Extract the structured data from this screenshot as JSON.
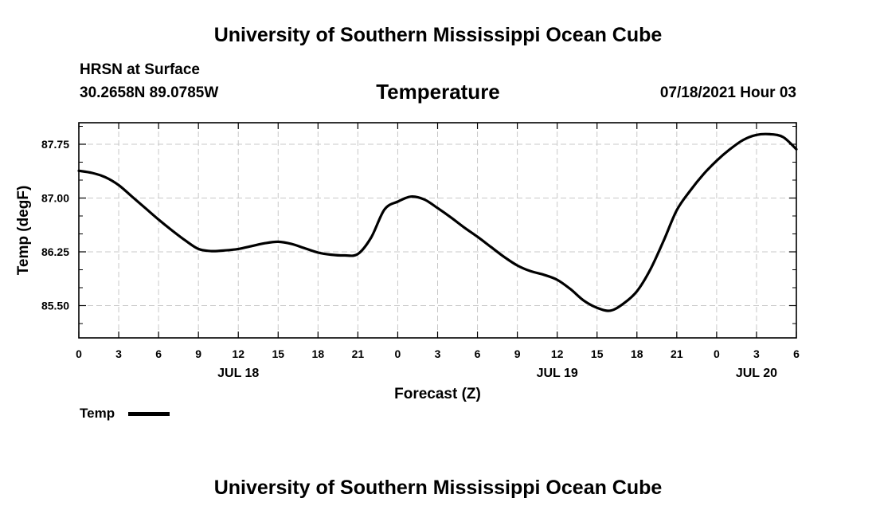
{
  "header": {
    "title": "University of Southern Mississippi Ocean Cube",
    "station": "HRSN at Surface",
    "coords": "30.2658N  89.0785W",
    "variable": "Temperature",
    "datetime": "07/18/2021 Hour 03"
  },
  "footer": {
    "title": "University of Southern Mississippi Ocean Cube"
  },
  "legend": {
    "label": "Temp"
  },
  "chart_data": {
    "type": "line",
    "title": "Temperature",
    "xlabel": "Forecast (Z)",
    "ylabel": "Temp (degF)",
    "xlim": [
      0,
      54
    ],
    "ylim": [
      85.05,
      88.05
    ],
    "grid": true,
    "legend_position": "bottom-left",
    "x_ticks": [
      0,
      3,
      6,
      9,
      12,
      15,
      18,
      21,
      24,
      27,
      30,
      33,
      36,
      39,
      42,
      45,
      48,
      51,
      54
    ],
    "x_tick_labels": [
      "0",
      "3",
      "6",
      "9",
      "12",
      "15",
      "18",
      "21",
      "0",
      "3",
      "6",
      "9",
      "12",
      "15",
      "18",
      "21",
      "0",
      "3",
      "6"
    ],
    "day_labels": [
      {
        "x": 12,
        "label": "JUL 18"
      },
      {
        "x": 36,
        "label": "JUL 19"
      },
      {
        "x": 51,
        "label": "JUL 20"
      }
    ],
    "y_ticks": [
      85.5,
      86.25,
      87.0,
      87.75
    ],
    "y_tick_labels": [
      "85.50",
      "86.25",
      "87.00",
      "87.75"
    ],
    "series": [
      {
        "name": "Temp",
        "color": "#000000",
        "x": [
          0,
          1,
          2,
          3,
          4,
          5,
          6,
          7,
          8,
          9,
          10,
          11,
          12,
          13,
          14,
          15,
          16,
          17,
          18,
          19,
          20,
          21,
          22,
          23,
          24,
          25,
          26,
          27,
          28,
          29,
          30,
          31,
          32,
          33,
          34,
          35,
          36,
          37,
          38,
          39,
          40,
          41,
          42,
          43,
          44,
          45,
          46,
          47,
          48,
          49,
          50,
          51,
          52,
          53,
          54
        ],
        "values": [
          87.38,
          87.35,
          87.29,
          87.18,
          87.02,
          86.86,
          86.7,
          86.55,
          86.41,
          86.29,
          86.26,
          86.27,
          86.29,
          86.33,
          86.37,
          86.39,
          86.36,
          86.3,
          86.24,
          86.21,
          86.2,
          86.22,
          86.45,
          86.84,
          86.95,
          87.02,
          86.98,
          86.86,
          86.73,
          86.59,
          86.46,
          86.32,
          86.18,
          86.06,
          85.98,
          85.93,
          85.86,
          85.73,
          85.57,
          85.47,
          85.43,
          85.53,
          85.7,
          86.0,
          86.4,
          86.83,
          87.1,
          87.33,
          87.52,
          87.68,
          87.81,
          87.88,
          87.89,
          87.85,
          87.68
        ]
      }
    ]
  }
}
